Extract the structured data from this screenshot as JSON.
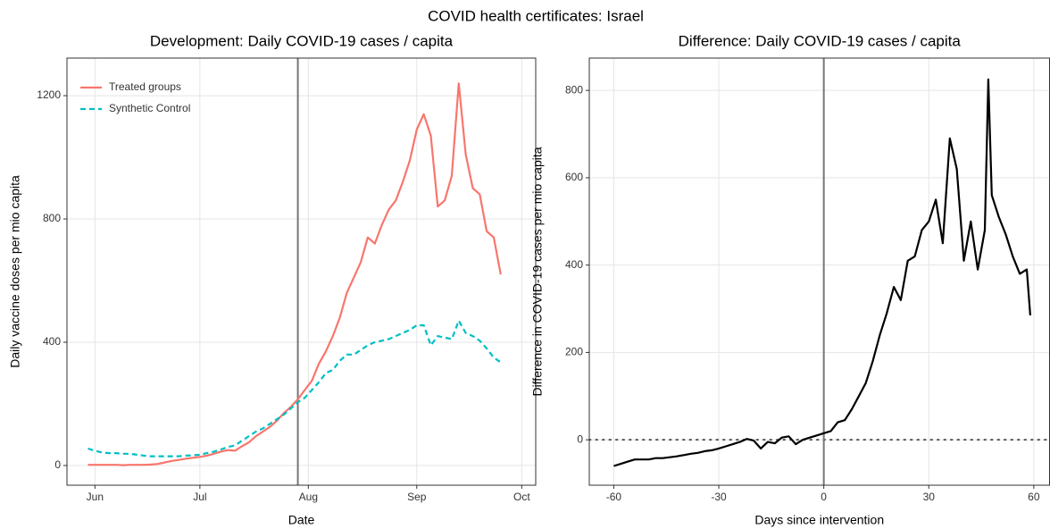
{
  "title": "COVID health certificates: Israel",
  "chart_data": [
    {
      "type": "line",
      "title": "Development: Daily COVID-19 cases / capita",
      "xlabel": "Date",
      "ylabel": "Daily vaccine doses per mio capita",
      "x": [
        -2,
        0,
        2,
        4,
        6,
        8,
        10,
        12,
        14,
        16,
        18,
        20,
        22,
        24,
        26,
        28,
        30,
        32,
        34,
        36,
        38,
        40,
        42,
        44,
        46,
        48,
        50,
        52,
        54,
        56,
        58,
        60,
        62,
        64,
        66,
        68,
        70,
        72,
        74,
        76,
        78,
        80,
        82,
        84,
        86,
        88,
        90,
        92,
        94,
        96,
        98,
        100,
        102,
        104,
        106,
        108,
        110,
        112,
        114,
        116
      ],
      "series": [
        {
          "name": "Treated groups",
          "color": "#f8766d",
          "dash": "solid",
          "values": [
            2,
            2,
            2,
            2,
            2,
            1,
            2,
            2,
            2,
            3,
            5,
            10,
            15,
            18,
            22,
            25,
            28,
            32,
            38,
            45,
            50,
            48,
            62,
            75,
            95,
            110,
            125,
            145,
            170,
            190,
            215,
            245,
            275,
            330,
            370,
            420,
            480,
            560,
            610,
            660,
            740,
            720,
            780,
            830,
            860,
            920,
            990,
            1090,
            1140,
            1070,
            840,
            860,
            940,
            1240,
            1010,
            900,
            880,
            760,
            740,
            620
          ]
        },
        {
          "name": "Synthetic Control",
          "color": "#00bfc4",
          "dash": "dashed",
          "values": [
            55,
            48,
            42,
            40,
            40,
            38,
            38,
            35,
            32,
            30,
            30,
            30,
            30,
            30,
            32,
            33,
            35,
            40,
            45,
            52,
            60,
            65,
            80,
            95,
            110,
            120,
            135,
            150,
            165,
            185,
            205,
            220,
            245,
            270,
            300,
            310,
            340,
            360,
            360,
            375,
            390,
            400,
            405,
            410,
            420,
            430,
            440,
            455,
            455,
            390,
            420,
            415,
            410,
            470,
            430,
            420,
            405,
            380,
            350,
            335
          ]
        }
      ],
      "xlim": [
        -8,
        126
      ],
      "ylim": [
        -64,
        1322
      ],
      "xticks": [
        {
          "value": 0,
          "label": "Jun"
        },
        {
          "value": 30,
          "label": "Jul"
        },
        {
          "value": 61,
          "label": "Aug"
        },
        {
          "value": 92,
          "label": "Sep"
        },
        {
          "value": 122,
          "label": "Oct"
        }
      ],
      "yticks": [
        0,
        400,
        800,
        1200
      ],
      "vline": 58,
      "grid": true,
      "legend": "top-left"
    },
    {
      "type": "line",
      "title": "Difference: Daily COVID-19 cases / capita",
      "xlabel": "Days since intervention",
      "ylabel": "Difference in COVID-19 cases per mio capita",
      "x": [
        -60,
        -58,
        -56,
        -54,
        -52,
        -50,
        -48,
        -46,
        -44,
        -42,
        -40,
        -38,
        -36,
        -34,
        -32,
        -30,
        -28,
        -26,
        -24,
        -22,
        -20,
        -18,
        -16,
        -14,
        -12,
        -10,
        -8,
        -6,
        -4,
        -2,
        0,
        2,
        4,
        6,
        8,
        10,
        12,
        14,
        16,
        18,
        20,
        22,
        24,
        26,
        28,
        30,
        32,
        34,
        36,
        38,
        40,
        42,
        44,
        46,
        47,
        48,
        50,
        52,
        54,
        56,
        58,
        59
      ],
      "series": [
        {
          "color": "#000000",
          "dash": "solid",
          "values": [
            -60,
            -55,
            -50,
            -45,
            -45,
            -45,
            -42,
            -42,
            -40,
            -38,
            -35,
            -32,
            -30,
            -26,
            -24,
            -20,
            -15,
            -10,
            -5,
            2,
            -2,
            -20,
            -5,
            -8,
            5,
            8,
            -10,
            0,
            5,
            10,
            15,
            20,
            40,
            45,
            70,
            100,
            130,
            180,
            240,
            290,
            350,
            320,
            410,
            420,
            480,
            500,
            550,
            450,
            690,
            620,
            410,
            500,
            390,
            480,
            825,
            560,
            510,
            470,
            420,
            380,
            390,
            285
          ]
        }
      ],
      "xlim": [
        -67,
        64.5
      ],
      "ylim": [
        -104,
        874
      ],
      "xticks": [
        -60,
        -30,
        0,
        30,
        60
      ],
      "yticks": [
        0,
        200,
        400,
        600,
        800
      ],
      "vline": 0,
      "hline": 0,
      "grid": true
    }
  ]
}
